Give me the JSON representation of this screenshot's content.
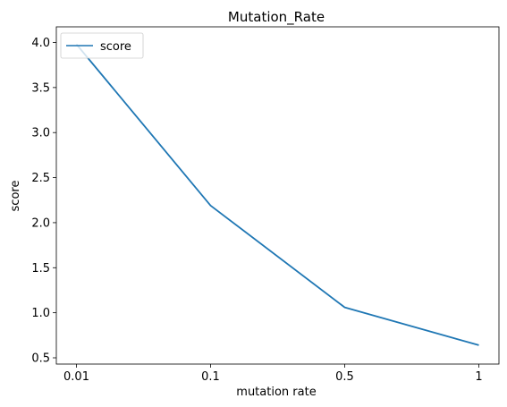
{
  "chart_data": {
    "type": "line",
    "title": "Mutation_Rate",
    "xlabel": "mutation rate",
    "ylabel": "score",
    "categories": [
      "0.01",
      "0.1",
      "0.5",
      "1"
    ],
    "series": [
      {
        "name": "score",
        "values": [
          3.98,
          2.19,
          1.06,
          0.64
        ]
      }
    ],
    "ylim": [
      0.5,
      4.0
    ],
    "yticks": [
      "0.5",
      "1.0",
      "1.5",
      "2.0",
      "2.5",
      "3.0",
      "3.5",
      "4.0"
    ],
    "grid": false,
    "legend_position": "top-left",
    "line_color": "#1f77b4"
  }
}
